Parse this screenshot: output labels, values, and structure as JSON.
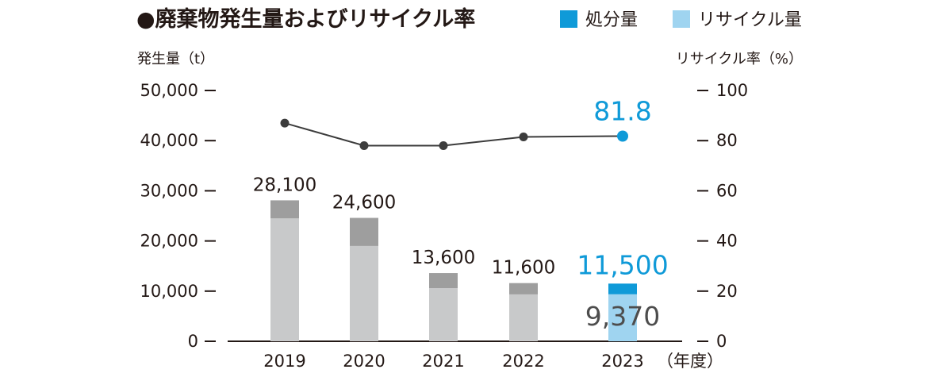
{
  "title": "●廃棄物発生量およびリサイクル率",
  "legend": [
    {
      "label": "処分量",
      "color": "#0f9ad8"
    },
    {
      "label": "リサイクル量",
      "color": "#9fd4f0"
    }
  ],
  "left_axis_title": "発生量（t）",
  "right_axis_title": "リサイクル率（%）",
  "x_unit": "（年度）",
  "left_ticks": [
    "0",
    "10,000",
    "20,000",
    "30,000",
    "40,000",
    "50,000"
  ],
  "right_ticks": [
    "0",
    "20",
    "40",
    "60",
    "80",
    "100"
  ],
  "colors": {
    "disposal": "#9e9e9e",
    "recycle": "#c8c9ca",
    "disposal_highlight": "#0f9ad8",
    "recycle_highlight": "#9fd4f0",
    "rate_line": "#3c3c3c",
    "rate_highlight": "#0f9ad8"
  },
  "chart_data": {
    "type": "bar",
    "categories": [
      "2019",
      "2020",
      "2021",
      "2022",
      "2023"
    ],
    "series": [
      {
        "name": "リサイクル量",
        "values": [
          24500,
          19000,
          10600,
          9350,
          9370
        ]
      },
      {
        "name": "処分量",
        "values": [
          3600,
          5600,
          3000,
          2250,
          2130
        ]
      }
    ],
    "totals": [
      28100,
      24600,
      13600,
      11600,
      11500
    ],
    "total_labels": [
      "28,100",
      "24,600",
      "13,600",
      "11,600",
      "11,500"
    ],
    "recycle_label_2023": "9,370",
    "line": {
      "name": "リサイクル率",
      "values": [
        87,
        78,
        78,
        81.5,
        81.8
      ]
    },
    "rate_label_2023": "81.8",
    "ylim": [
      0,
      50000
    ],
    "y2lim": [
      0,
      100
    ],
    "highlight_index": 4
  }
}
